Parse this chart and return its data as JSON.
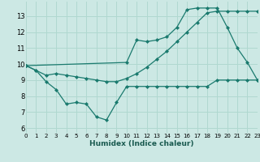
{
  "xlabel": "Humidex (Indice chaleur)",
  "background_color": "#cce8e4",
  "grid_color": "#b0d8d0",
  "line_color": "#1a7a6e",
  "x_ticks": [
    0,
    1,
    2,
    3,
    4,
    5,
    6,
    7,
    8,
    9,
    10,
    11,
    12,
    13,
    14,
    15,
    16,
    17,
    18,
    19,
    20,
    21,
    22,
    23
  ],
  "y_ticks": [
    6,
    7,
    8,
    9,
    10,
    11,
    12,
    13
  ],
  "xlim": [
    0,
    23
  ],
  "ylim": [
    5.7,
    13.9
  ],
  "series": [
    {
      "x": [
        0,
        1,
        2,
        3,
        4,
        5,
        6,
        7,
        8,
        9,
        10,
        11,
        12,
        13,
        14,
        15,
        16,
        17,
        18,
        19,
        20,
        21,
        22,
        23
      ],
      "y": [
        9.9,
        9.6,
        8.9,
        8.4,
        7.5,
        7.6,
        7.5,
        6.7,
        6.5,
        7.6,
        8.6,
        8.6,
        8.6,
        8.6,
        8.6,
        8.6,
        8.6,
        8.6,
        8.6,
        9.0,
        9.0,
        9.0,
        9.0,
        9.0
      ]
    },
    {
      "x": [
        0,
        1,
        2,
        3,
        4,
        5,
        6,
        7,
        8,
        9,
        10,
        11,
        12,
        13,
        14,
        15,
        16,
        17,
        18,
        19,
        20,
        21,
        22,
        23
      ],
      "y": [
        9.9,
        9.6,
        9.3,
        9.4,
        9.3,
        9.2,
        9.1,
        9.0,
        8.9,
        8.9,
        9.1,
        9.4,
        9.8,
        10.3,
        10.8,
        11.4,
        12.0,
        12.6,
        13.2,
        13.3,
        13.3,
        13.3,
        13.3,
        13.3
      ]
    },
    {
      "x": [
        0,
        10,
        11,
        12,
        13,
        14,
        15,
        16,
        17,
        18,
        19,
        20,
        21,
        22,
        23
      ],
      "y": [
        9.9,
        10.1,
        11.5,
        11.4,
        11.5,
        11.7,
        12.3,
        13.4,
        13.5,
        13.5,
        13.5,
        12.3,
        11.0,
        10.1,
        9.0
      ]
    }
  ]
}
